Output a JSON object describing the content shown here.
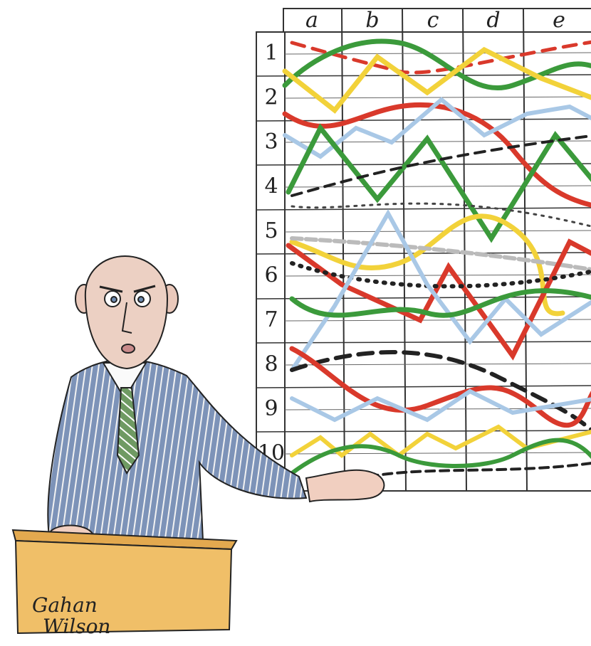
{
  "grid": {
    "columns": [
      "a",
      "b",
      "c",
      "d",
      "e"
    ],
    "rows": [
      "1",
      "2",
      "3",
      "4",
      "5",
      "6",
      "7",
      "8",
      "9",
      "10"
    ]
  },
  "signature": [
    "Gahan",
    "Wilson"
  ]
}
